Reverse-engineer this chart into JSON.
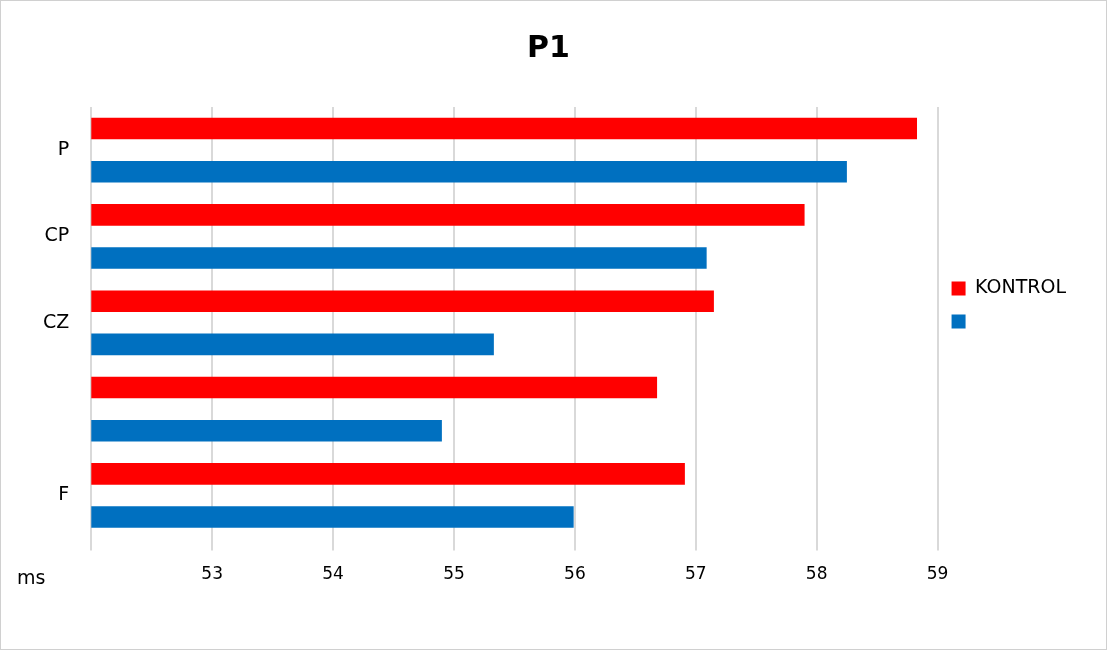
{
  "chart_data": {
    "type": "bar",
    "orientation": "horizontal",
    "title": "P1",
    "xlabel": "ms",
    "categories": [
      "P",
      "CP",
      "CZ",
      null,
      "F"
    ],
    "series": [
      {
        "name": "KONTROL",
        "color": "#ff0000",
        "values": [
          58.83,
          57.9,
          57.15,
          56.68,
          56.91
        ]
      },
      {
        "color": "#0070c0",
        "values": [
          58.25,
          57.09,
          55.33,
          54.9,
          55.99
        ]
      }
    ],
    "xlim": [
      52,
      59
    ],
    "xticks": [
      {
        "value": 52,
        "label": null
      },
      53,
      54,
      55,
      56,
      57,
      58,
      59
    ],
    "grid": "x",
    "legend": "right"
  }
}
